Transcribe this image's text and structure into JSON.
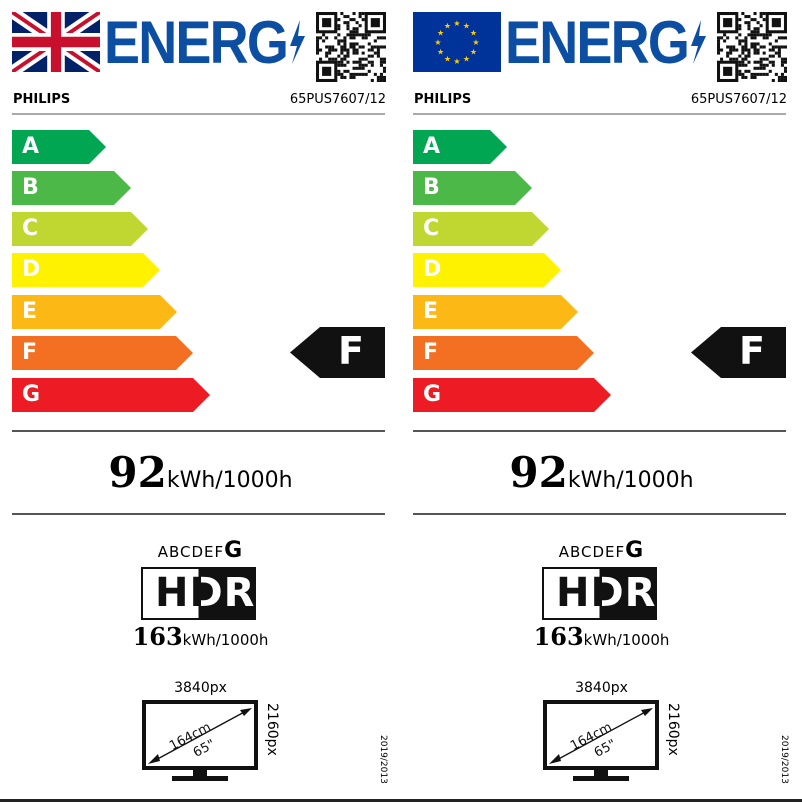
{
  "labels": [
    {
      "flag": "uk-flag",
      "title": "ENERG",
      "brand": "PHILIPS",
      "model": "65PUS7607/12"
    },
    {
      "flag": "eu-flag",
      "title": "ENERG",
      "brand": "PHILIPS",
      "model": "65PUS7607/12"
    }
  ],
  "scale": [
    {
      "letter": "A",
      "color": "#00a651"
    },
    {
      "letter": "B",
      "color": "#4cb848"
    },
    {
      "letter": "C",
      "color": "#bfd730"
    },
    {
      "letter": "D",
      "color": "#fff200"
    },
    {
      "letter": "E",
      "color": "#fcb814"
    },
    {
      "letter": "F",
      "color": "#f36f21"
    },
    {
      "letter": "G",
      "color": "#ed1c24"
    }
  ],
  "energy_class": "F",
  "sdr": {
    "value": "92",
    "unit": "kWh/1000h"
  },
  "hdr": {
    "scale_prefix": "ABCDEF",
    "scale_class": "G",
    "logo": "HDR",
    "value": "163",
    "unit": "kWh/1000h"
  },
  "screen": {
    "h_res": "3840px",
    "v_res": "2160px",
    "diag_cm": "164cm",
    "diag_in": "65\""
  },
  "regulation": "2019/2013"
}
